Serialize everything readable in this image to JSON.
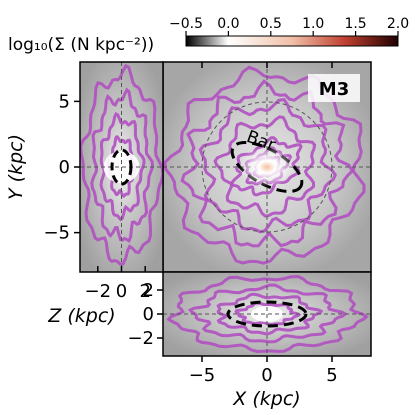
{
  "chart_data": {
    "type": "heatmap",
    "model_badge": "M3",
    "colorbar": {
      "label": "log$_{10}$(Σ ($N$ kpc$^{-2}$))",
      "label_display": "log₁₀(Σ (N kpc⁻²))",
      "range": [
        -0.5,
        2.0
      ],
      "ticks": [
        "−0.5",
        "0.0",
        "0.5",
        "1.0",
        "1.5",
        "2.0"
      ],
      "cmap_colors": [
        "#000000",
        "#ffffff",
        "#e8a080",
        "#b03020",
        "#200000"
      ]
    },
    "panels": {
      "xy": {
        "xlabel": "X (kpc)",
        "ylabel": "Y (kpc)",
        "xlim": [
          -8,
          8
        ],
        "ylim": [
          -8,
          8
        ],
        "xticks": [
          "−5",
          "0",
          "5"
        ],
        "yticks": [
          "5",
          "0",
          "−5"
        ],
        "bar_label": "Bar",
        "bar_ellipse": {
          "cx": 0,
          "cy": 0,
          "a": 3.0,
          "b": 1.3,
          "angle_deg": -30
        },
        "dashed_circle_radius": 5.0
      },
      "zy": {
        "xlabel": "Z (kpc)",
        "xlim": [
          -3.5,
          3.5
        ],
        "xticks": [
          "−2",
          "0",
          "2"
        ],
        "ellipse": {
          "a": 0.8,
          "b": 1.3
        }
      },
      "xz": {
        "ylabel": "Z (kpc)",
        "ylim": [
          -3.5,
          3.5
        ],
        "yticks": [
          "2",
          "0",
          "−2"
        ],
        "ellipse": {
          "a": 3.0,
          "b": 1.0
        }
      }
    },
    "colors": {
      "contour": "#b050c0",
      "ellipse": "#000000",
      "guide": "#555555",
      "background_gray": "#b8b8b8"
    }
  }
}
